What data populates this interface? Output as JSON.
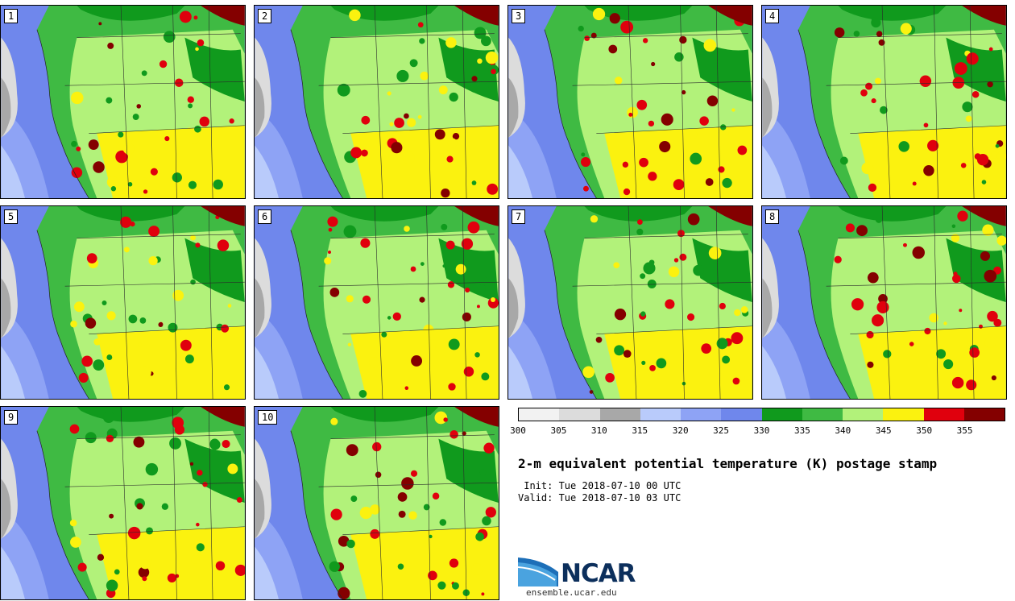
{
  "stamps": [
    {
      "label": "1"
    },
    {
      "label": "2"
    },
    {
      "label": "3"
    },
    {
      "label": "4"
    },
    {
      "label": "5"
    },
    {
      "label": "6"
    },
    {
      "label": "7"
    },
    {
      "label": "8"
    },
    {
      "label": "9"
    },
    {
      "label": "10"
    }
  ],
  "colorbar": {
    "colors": [
      "#f2f2f2",
      "#dcdcdc",
      "#a8a8a8",
      "#b9cbfb",
      "#8ea3f5",
      "#6f87ec",
      "#109a1d",
      "#3fba43",
      "#b2f27a",
      "#fbf20f",
      "#e0000d",
      "#840000"
    ],
    "ticks": [
      "300",
      "305",
      "310",
      "315",
      "320",
      "325",
      "330",
      "335",
      "340",
      "345",
      "350",
      "355"
    ]
  },
  "title": "2-m equivalent potential temperature (K) postage stamp",
  "init_line": " Init: Tue 2018-07-10 00 UTC",
  "valid_line": "Valid: Tue 2018-07-10 03 UTC",
  "logo": {
    "name": "NCAR",
    "url": "ensemble.ucar.edu"
  }
}
